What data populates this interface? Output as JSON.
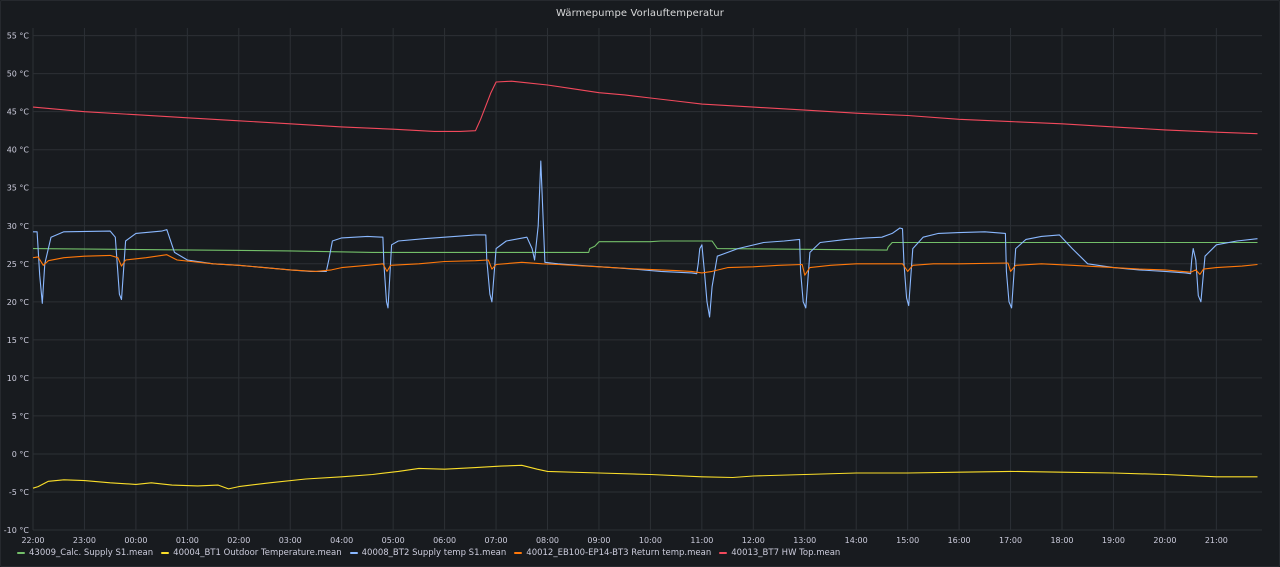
{
  "panel": {
    "title": "Wärmepumpe Vorlauftemperatur"
  },
  "colors": {
    "background": "#181b1f",
    "grid": "#2c3035",
    "text": "#ccccdc"
  },
  "chart_data": {
    "type": "line",
    "title": "Wärmepumpe Vorlauftemperatur",
    "xlabel": "",
    "ylabel": "",
    "x_tick_labels": [
      "22:00",
      "23:00",
      "00:00",
      "01:00",
      "02:00",
      "03:00",
      "04:00",
      "05:00",
      "06:00",
      "07:00",
      "08:00",
      "09:00",
      "10:00",
      "11:00",
      "12:00",
      "13:00",
      "14:00",
      "15:00",
      "16:00",
      "17:00",
      "18:00",
      "19:00",
      "20:00",
      "21:00"
    ],
    "x_range_hours": [
      0,
      23.8
    ],
    "y_ticks": [
      -10,
      -5,
      0,
      5,
      10,
      15,
      20,
      25,
      30,
      35,
      40,
      45,
      50,
      55
    ],
    "y_tick_labels": [
      "-10 °C",
      "-5 °C",
      "0 °C",
      "5 °C",
      "10 °C",
      "15 °C",
      "20 °C",
      "25 °C",
      "30 °C",
      "35 °C",
      "40 °C",
      "45 °C",
      "50 °C",
      "55 °C"
    ],
    "ylim": [
      -10,
      56
    ],
    "grid": true,
    "legend_position": "bottom-left",
    "series": [
      {
        "name": "43009_Calc. Supply S1.mean",
        "color": "#73bf69",
        "points": [
          [
            0,
            27.0
          ],
          [
            1.6,
            26.9
          ],
          [
            3.2,
            26.8
          ],
          [
            5.0,
            26.7
          ],
          [
            6.6,
            26.5
          ],
          [
            8.6,
            26.5
          ],
          [
            10.8,
            26.5
          ],
          [
            10.82,
            27.0
          ],
          [
            10.92,
            27.3
          ],
          [
            11.0,
            27.9
          ],
          [
            12.0,
            27.9
          ],
          [
            12.2,
            28.0
          ],
          [
            13.2,
            28.0
          ],
          [
            13.3,
            27.0
          ],
          [
            15.0,
            26.9
          ],
          [
            16.6,
            26.8
          ],
          [
            16.62,
            27.2
          ],
          [
            16.7,
            27.8
          ],
          [
            18.0,
            27.8
          ],
          [
            21.0,
            27.8
          ],
          [
            23.8,
            27.8
          ]
        ]
      },
      {
        "name": "40004_BT1 Outdoor Temperature.mean",
        "color": "#fade2a",
        "points": [
          [
            0,
            -4.5
          ],
          [
            0.1,
            -4.3
          ],
          [
            0.3,
            -3.6
          ],
          [
            0.6,
            -3.4
          ],
          [
            1.0,
            -3.5
          ],
          [
            1.5,
            -3.8
          ],
          [
            2.0,
            -4.0
          ],
          [
            2.3,
            -3.8
          ],
          [
            2.7,
            -4.1
          ],
          [
            3.2,
            -4.2
          ],
          [
            3.6,
            -4.1
          ],
          [
            3.8,
            -4.6
          ],
          [
            4.0,
            -4.3
          ],
          [
            4.6,
            -3.8
          ],
          [
            5.3,
            -3.3
          ],
          [
            6.0,
            -3.0
          ],
          [
            6.6,
            -2.7
          ],
          [
            7.1,
            -2.3
          ],
          [
            7.5,
            -1.9
          ],
          [
            8.0,
            -2.0
          ],
          [
            8.6,
            -1.8
          ],
          [
            9.1,
            -1.6
          ],
          [
            9.5,
            -1.5
          ],
          [
            9.8,
            -2.0
          ],
          [
            10.0,
            -2.3
          ],
          [
            11.0,
            -2.5
          ],
          [
            12.0,
            -2.7
          ],
          [
            13.0,
            -3.0
          ],
          [
            13.6,
            -3.1
          ],
          [
            14.0,
            -2.9
          ],
          [
            15.0,
            -2.7
          ],
          [
            16.0,
            -2.5
          ],
          [
            17.0,
            -2.5
          ],
          [
            18.0,
            -2.4
          ],
          [
            19.0,
            -2.3
          ],
          [
            20.0,
            -2.4
          ],
          [
            21.0,
            -2.5
          ],
          [
            22.0,
            -2.7
          ],
          [
            23.0,
            -3.0
          ],
          [
            23.8,
            -3.0
          ]
        ]
      },
      {
        "name": "40008_BT2 Supply temp S1.mean",
        "color": "#8ab8ff",
        "points": [
          [
            0,
            29.2
          ],
          [
            0.08,
            29.2
          ],
          [
            0.13,
            23.5
          ],
          [
            0.18,
            19.8
          ],
          [
            0.23,
            25.0
          ],
          [
            0.35,
            28.5
          ],
          [
            0.6,
            29.2
          ],
          [
            1.5,
            29.3
          ],
          [
            1.6,
            28.5
          ],
          [
            1.68,
            21.0
          ],
          [
            1.72,
            20.3
          ],
          [
            1.8,
            28.0
          ],
          [
            2.0,
            29.0
          ],
          [
            2.5,
            29.3
          ],
          [
            2.6,
            29.5
          ],
          [
            2.75,
            26.5
          ],
          [
            3.0,
            25.5
          ],
          [
            3.5,
            25.0
          ],
          [
            4.0,
            24.8
          ],
          [
            4.5,
            24.5
          ],
          [
            5.0,
            24.2
          ],
          [
            5.4,
            24.0
          ],
          [
            5.7,
            24.0
          ],
          [
            5.75,
            25.5
          ],
          [
            5.82,
            28.0
          ],
          [
            6.0,
            28.4
          ],
          [
            6.5,
            28.6
          ],
          [
            6.8,
            28.5
          ],
          [
            6.82,
            25.0
          ],
          [
            6.87,
            20.0
          ],
          [
            6.9,
            19.2
          ],
          [
            6.97,
            27.5
          ],
          [
            7.1,
            28.0
          ],
          [
            7.6,
            28.3
          ],
          [
            8.0,
            28.5
          ],
          [
            8.6,
            28.8
          ],
          [
            8.8,
            28.8
          ],
          [
            8.82,
            25.5
          ],
          [
            8.88,
            21.0
          ],
          [
            8.92,
            20.0
          ],
          [
            9.0,
            27.0
          ],
          [
            9.2,
            28.0
          ],
          [
            9.6,
            28.5
          ],
          [
            9.7,
            27.0
          ],
          [
            9.75,
            25.5
          ],
          [
            9.82,
            30.0
          ],
          [
            9.87,
            38.5
          ],
          [
            9.92,
            30.0
          ],
          [
            9.95,
            25.2
          ],
          [
            10.2,
            25.0
          ],
          [
            10.6,
            24.8
          ],
          [
            11.5,
            24.4
          ],
          [
            12.2,
            24.0
          ],
          [
            12.8,
            23.8
          ],
          [
            12.9,
            23.7
          ],
          [
            12.93,
            25.0
          ],
          [
            12.96,
            27.0
          ],
          [
            13.0,
            27.5
          ],
          [
            13.05,
            24.0
          ],
          [
            13.1,
            20.0
          ],
          [
            13.15,
            18.0
          ],
          [
            13.2,
            22.0
          ],
          [
            13.3,
            26.0
          ],
          [
            13.7,
            27.0
          ],
          [
            14.2,
            27.8
          ],
          [
            14.6,
            28.0
          ],
          [
            14.9,
            28.2
          ],
          [
            14.92,
            24.0
          ],
          [
            14.97,
            20.0
          ],
          [
            15.02,
            19.2
          ],
          [
            15.1,
            26.5
          ],
          [
            15.3,
            27.8
          ],
          [
            15.8,
            28.2
          ],
          [
            16.2,
            28.4
          ],
          [
            16.5,
            28.5
          ],
          [
            16.7,
            29.0
          ],
          [
            16.85,
            29.7
          ],
          [
            16.9,
            29.6
          ],
          [
            16.93,
            25.0
          ],
          [
            16.98,
            20.5
          ],
          [
            17.02,
            19.5
          ],
          [
            17.1,
            27.0
          ],
          [
            17.3,
            28.5
          ],
          [
            17.6,
            29.0
          ],
          [
            18.0,
            29.1
          ],
          [
            18.5,
            29.2
          ],
          [
            18.9,
            29.0
          ],
          [
            18.92,
            24.0
          ],
          [
            18.97,
            20.0
          ],
          [
            19.02,
            19.2
          ],
          [
            19.1,
            27.0
          ],
          [
            19.3,
            28.2
          ],
          [
            19.6,
            28.6
          ],
          [
            19.95,
            28.8
          ],
          [
            20.2,
            27.0
          ],
          [
            20.5,
            25.0
          ],
          [
            21.0,
            24.5
          ],
          [
            21.5,
            24.2
          ],
          [
            22.0,
            24.0
          ],
          [
            22.4,
            23.8
          ],
          [
            22.5,
            23.7
          ],
          [
            22.52,
            25.5
          ],
          [
            22.55,
            27.0
          ],
          [
            22.6,
            25.5
          ],
          [
            22.65,
            20.8
          ],
          [
            22.7,
            20.0
          ],
          [
            22.78,
            26.0
          ],
          [
            23.0,
            27.5
          ],
          [
            23.4,
            28.0
          ],
          [
            23.8,
            28.3
          ]
        ]
      },
      {
        "name": "40012_EB100-EP14-BT3 Return temp.mean",
        "color": "#ff780a",
        "points": [
          [
            0,
            25.8
          ],
          [
            0.1,
            25.9
          ],
          [
            0.2,
            24.8
          ],
          [
            0.3,
            25.4
          ],
          [
            0.6,
            25.8
          ],
          [
            1.0,
            26.0
          ],
          [
            1.5,
            26.1
          ],
          [
            1.65,
            25.8
          ],
          [
            1.72,
            24.7
          ],
          [
            1.8,
            25.5
          ],
          [
            2.2,
            25.8
          ],
          [
            2.6,
            26.2
          ],
          [
            2.8,
            25.5
          ],
          [
            3.5,
            25.0
          ],
          [
            4.0,
            24.8
          ],
          [
            5.0,
            24.2
          ],
          [
            5.5,
            24.0
          ],
          [
            5.8,
            24.2
          ],
          [
            6.0,
            24.5
          ],
          [
            6.5,
            24.8
          ],
          [
            6.8,
            25.0
          ],
          [
            6.88,
            24.0
          ],
          [
            6.95,
            24.8
          ],
          [
            7.5,
            25.0
          ],
          [
            8.0,
            25.3
          ],
          [
            8.6,
            25.4
          ],
          [
            8.85,
            25.5
          ],
          [
            8.92,
            24.3
          ],
          [
            9.0,
            24.9
          ],
          [
            9.5,
            25.2
          ],
          [
            9.9,
            25.0
          ],
          [
            10.2,
            24.9
          ],
          [
            11.0,
            24.6
          ],
          [
            11.8,
            24.3
          ],
          [
            12.5,
            24.1
          ],
          [
            12.8,
            24.0
          ],
          [
            13.0,
            23.8
          ],
          [
            13.2,
            24.0
          ],
          [
            13.5,
            24.5
          ],
          [
            14.0,
            24.6
          ],
          [
            14.5,
            24.8
          ],
          [
            14.95,
            24.9
          ],
          [
            15.0,
            23.5
          ],
          [
            15.1,
            24.5
          ],
          [
            15.5,
            24.8
          ],
          [
            16.0,
            25.0
          ],
          [
            16.9,
            25.0
          ],
          [
            17.0,
            24.0
          ],
          [
            17.1,
            24.8
          ],
          [
            17.5,
            25.0
          ],
          [
            18.0,
            25.0
          ],
          [
            18.95,
            25.1
          ],
          [
            19.0,
            24.0
          ],
          [
            19.1,
            24.8
          ],
          [
            19.6,
            25.0
          ],
          [
            20.2,
            24.8
          ],
          [
            21.0,
            24.5
          ],
          [
            21.5,
            24.3
          ],
          [
            22.0,
            24.2
          ],
          [
            22.5,
            23.9
          ],
          [
            22.6,
            24.2
          ],
          [
            22.68,
            23.6
          ],
          [
            22.75,
            24.3
          ],
          [
            23.0,
            24.5
          ],
          [
            23.5,
            24.7
          ],
          [
            23.8,
            24.9
          ]
        ]
      },
      {
        "name": "40013_BT7 HW Top.mean",
        "color": "#f2495c",
        "points": [
          [
            0,
            45.6
          ],
          [
            1.0,
            45.0
          ],
          [
            2.0,
            44.6
          ],
          [
            3.0,
            44.2
          ],
          [
            4.0,
            43.8
          ],
          [
            5.0,
            43.4
          ],
          [
            6.0,
            43.0
          ],
          [
            7.0,
            42.7
          ],
          [
            7.8,
            42.4
          ],
          [
            8.3,
            42.4
          ],
          [
            8.6,
            42.5
          ],
          [
            8.7,
            44.0
          ],
          [
            8.9,
            47.5
          ],
          [
            9.0,
            48.9
          ],
          [
            9.3,
            49.0
          ],
          [
            9.6,
            48.8
          ],
          [
            10.0,
            48.5
          ],
          [
            10.5,
            48.0
          ],
          [
            11.0,
            47.5
          ],
          [
            11.5,
            47.2
          ],
          [
            12.0,
            46.8
          ],
          [
            12.5,
            46.4
          ],
          [
            13.0,
            46.0
          ],
          [
            14.0,
            45.6
          ],
          [
            15.0,
            45.2
          ],
          [
            16.0,
            44.8
          ],
          [
            17.0,
            44.5
          ],
          [
            18.0,
            44.0
          ],
          [
            19.0,
            43.7
          ],
          [
            20.0,
            43.4
          ],
          [
            21.0,
            43.0
          ],
          [
            22.0,
            42.6
          ],
          [
            23.0,
            42.3
          ],
          [
            23.8,
            42.1
          ]
        ]
      }
    ]
  }
}
